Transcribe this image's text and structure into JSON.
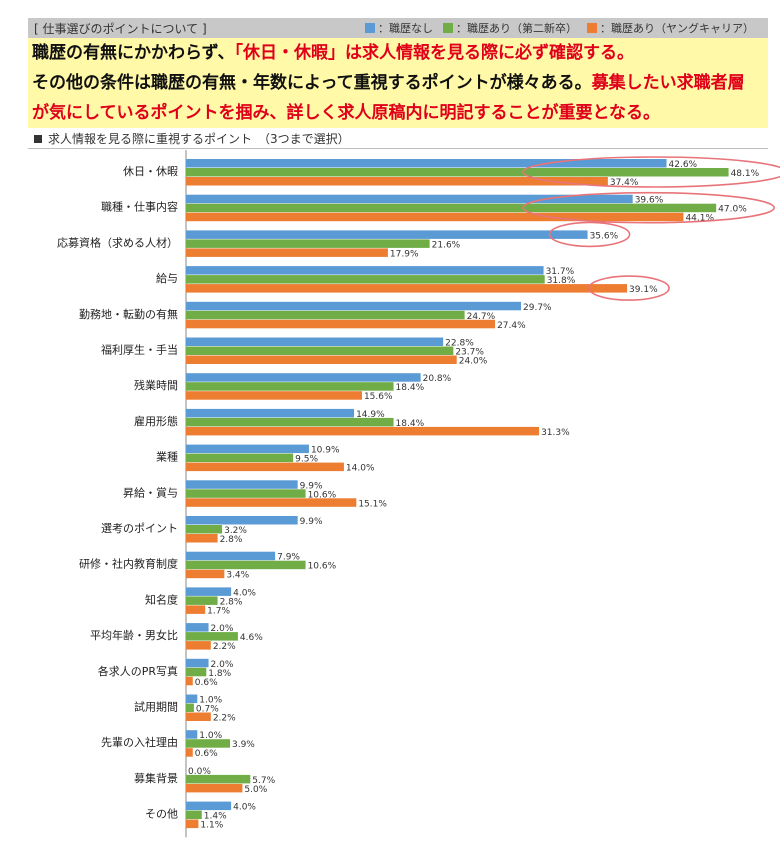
{
  "header": {
    "section_label": "[ 仕事選びのポイントについて ]"
  },
  "legend": [
    {
      "label": "：職歴なし",
      "color": "#5b9bd5"
    },
    {
      "label": "：職歴あり（第二新卒）",
      "color": "#70ad47"
    },
    {
      "label": "：職歴あり（ヤングキャリア）",
      "color": "#ed7d31"
    }
  ],
  "callout": {
    "line1_a": "職歴の有無にかかわらず、",
    "line1_b": "「休日・休暇」は求人情報を見る際に必ず確認する。",
    "line2_a": "その他の条件は職歴の有無・年数によって重視するポイントが様々ある。",
    "line2_b": "募集したい求職者層",
    "line3": "が気にしているポイントを掴み、詳しく求人原稿内に明記することが重要となる。"
  },
  "chart_heading": "求人情報を見る際に重視するポイント　（3つまで選択）",
  "chart_data": {
    "type": "bar",
    "orientation": "horizontal",
    "categories": [
      "休日・休暇",
      "職種・仕事内容",
      "応募資格（求める人材）",
      "給与",
      "勤務地・転勤の有無",
      "福利厚生・手当",
      "残業時間",
      "雇用形態",
      "業種",
      "昇給・賞与",
      "選考のポイント",
      "研修・社内教育制度",
      "知名度",
      "平均年齢・男女比",
      "各求人のPR写真",
      "試用期間",
      "先輩の入社理由",
      "募集背景",
      "その他"
    ],
    "series": [
      {
        "name": "職歴なし",
        "color": "#5b9bd5",
        "values": [
          42.6,
          39.6,
          35.6,
          31.7,
          29.7,
          22.8,
          20.8,
          14.9,
          10.9,
          9.9,
          9.9,
          7.9,
          4.0,
          2.0,
          2.0,
          1.0,
          1.0,
          0.0,
          4.0
        ]
      },
      {
        "name": "職歴あり（第二新卒）",
        "color": "#70ad47",
        "values": [
          48.1,
          47.0,
          21.6,
          31.8,
          24.7,
          23.7,
          18.4,
          18.4,
          9.5,
          10.6,
          3.2,
          10.6,
          2.8,
          4.6,
          1.8,
          0.7,
          3.9,
          5.7,
          1.4
        ]
      },
      {
        "name": "職歴あり（ヤングキャリア）",
        "color": "#ed7d31",
        "values": [
          37.4,
          44.1,
          17.9,
          39.1,
          27.4,
          24.0,
          15.6,
          31.3,
          14.0,
          15.1,
          2.8,
          3.4,
          1.7,
          2.2,
          0.6,
          2.2,
          0.6,
          5.0,
          1.1
        ]
      }
    ],
    "value_suffix": "%",
    "xlim": [
      0,
      50
    ],
    "highlight_color": "#e8747a"
  }
}
